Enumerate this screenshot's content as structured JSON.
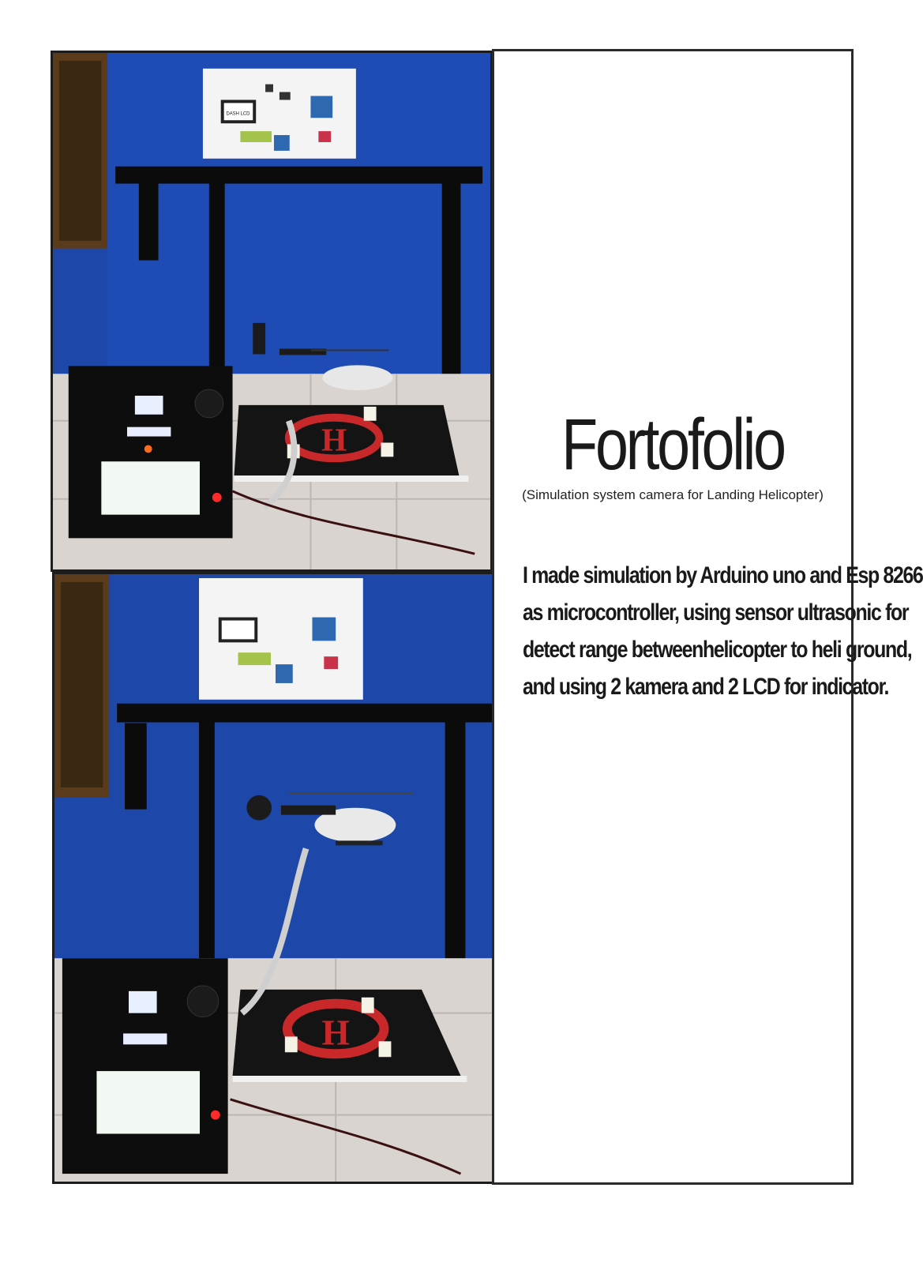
{
  "title": "Fortofolio",
  "subtitle": "(Simulation system camera for Landing Helicopter)",
  "description_lines": [
    "I made  simulation by Arduino uno and Esp 8266",
    "as microcontroller, using sensor ultrasonic for",
    "detect range betweenhelicopter to heli ground,",
    " and using 2 kamera and 2 LCD for indicator."
  ],
  "poster_label": "DASH LCD",
  "helipad_letter": "H",
  "colors": {
    "wall_blue": "#1d47a8",
    "pipe_black": "#0b0b0b",
    "helipad_red": "#c8282a",
    "floor_tile": "#d9d4d0"
  }
}
